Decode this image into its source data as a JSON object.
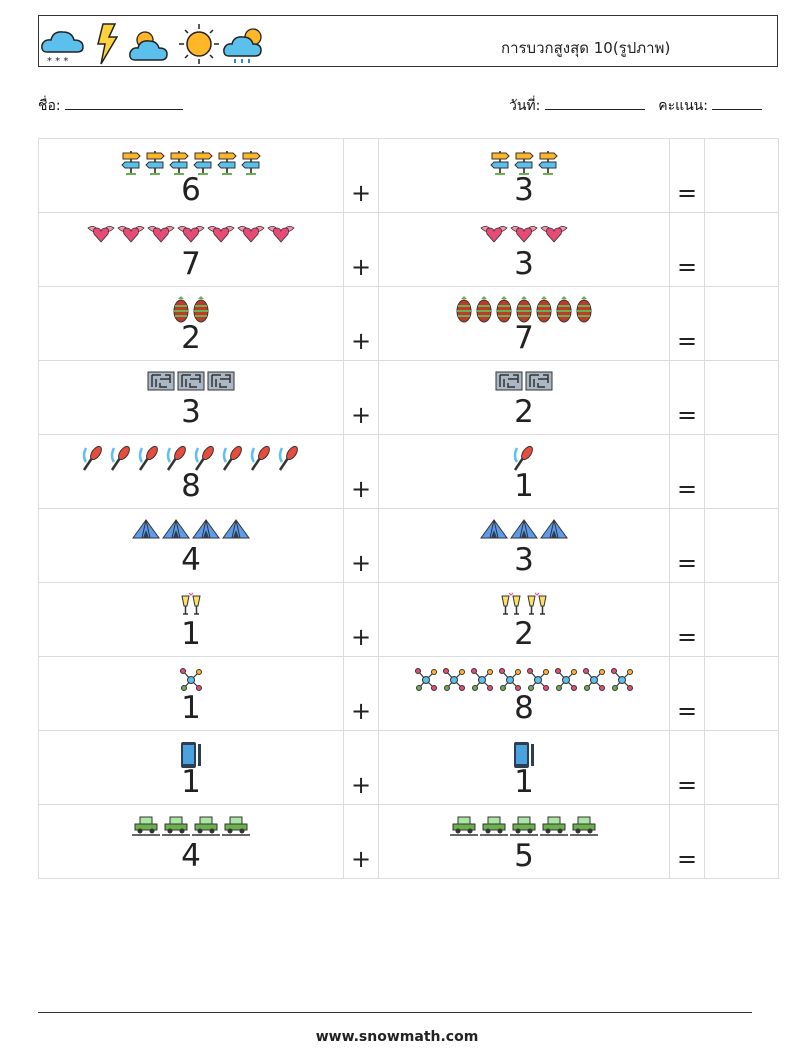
{
  "header": {
    "title": "การบวกสูงสุด 10(รูปภาพ)",
    "icons": [
      "snow-cloud-icon",
      "lightning-icon",
      "partly-cloudy-icon",
      "sun-icon",
      "rain-cloud-sun-icon"
    ]
  },
  "info": {
    "name_label": "ชื่อ:",
    "date_label": "วันที่:",
    "score_label": "คะแนน:"
  },
  "operators": {
    "plus": "+",
    "equals": "="
  },
  "problems": [
    {
      "icon": "signpost-icon",
      "a": 6,
      "b": 3
    },
    {
      "icon": "winged-heart-icon",
      "a": 7,
      "b": 3
    },
    {
      "icon": "pinecone-icon",
      "a": 2,
      "b": 7
    },
    {
      "icon": "maze-icon",
      "a": 3,
      "b": 2
    },
    {
      "icon": "juggling-club-icon",
      "a": 8,
      "b": 1
    },
    {
      "icon": "tent-icon",
      "a": 4,
      "b": 3
    },
    {
      "icon": "champagne-glasses-icon",
      "a": 1,
      "b": 2
    },
    {
      "icon": "molecule-icon",
      "a": 1,
      "b": 8
    },
    {
      "icon": "smartphone-icon",
      "a": 1,
      "b": 1
    },
    {
      "icon": "vintage-car-icon",
      "a": 4,
      "b": 5
    }
  ],
  "footer": {
    "site": "www.snowmath.com"
  }
}
